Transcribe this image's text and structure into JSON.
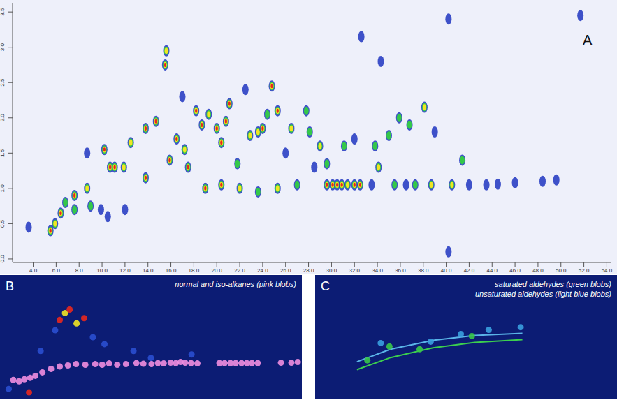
{
  "chart_data": [
    {
      "panel_label": "A",
      "type": "scatter",
      "xlim": [
        2.2,
        54.4
      ],
      "ylim": [
        -0.05,
        3.63
      ],
      "xticks": [
        {
          "value": 4,
          "label": "4.0"
        },
        {
          "value": 6,
          "label": "6.0"
        },
        {
          "value": 8,
          "label": "8.0"
        },
        {
          "value": 10,
          "label": "10.0"
        },
        {
          "value": 12,
          "label": "12.0"
        },
        {
          "value": 14,
          "label": "14.0"
        },
        {
          "value": 16,
          "label": "16.0"
        },
        {
          "value": 18,
          "label": "18.0"
        },
        {
          "value": 20,
          "label": "20.0"
        },
        {
          "value": 22,
          "label": "22.0"
        },
        {
          "value": 24,
          "label": "24.0"
        },
        {
          "value": 26,
          "label": "26.0"
        },
        {
          "value": 28,
          "label": "28.0"
        },
        {
          "value": 30,
          "label": "30.0"
        },
        {
          "value": 32,
          "label": "32.0"
        },
        {
          "value": 34,
          "label": "34.0"
        },
        {
          "value": 36,
          "label": "36.0"
        },
        {
          "value": 38,
          "label": "38.0"
        },
        {
          "value": 40,
          "label": "40.0"
        },
        {
          "value": 42,
          "label": "42.0"
        },
        {
          "value": 44,
          "label": "44.0"
        },
        {
          "value": 46,
          "label": "46.0"
        },
        {
          "value": 48,
          "label": "48.0"
        },
        {
          "value": 50,
          "label": "50.0"
        },
        {
          "value": 52,
          "label": "52.0"
        },
        {
          "value": 54,
          "label": "54.0"
        }
      ],
      "yticks": [
        {
          "value": 0,
          "label": "0.0"
        },
        0.5,
        {
          "value": 1,
          "label": "1.0"
        },
        1.5,
        {
          "value": 2,
          "label": "2.0"
        },
        2.5,
        {
          "value": 3,
          "label": "3.0"
        },
        3.5
      ],
      "x": [
        3.6,
        5.5,
        5.9,
        6.4,
        6.8,
        7.6,
        7.6,
        8.7,
        9.0,
        9.9,
        10.5,
        8.7,
        10.2,
        10.7,
        11.1,
        11.9,
        12.5,
        12.0,
        13.8,
        13.8,
        14.7,
        15.5,
        15.6,
        15.9,
        16.5,
        17.2,
        17.5,
        18.2,
        18.7,
        19.0,
        19.3,
        20.0,
        20.4,
        20.8,
        21.1,
        20.4,
        22.0,
        22.9,
        23.6,
        24.0,
        24.4,
        25.3,
        25.3,
        23.6,
        26.5,
        27.8,
        28.1,
        29.0,
        29.6,
        30.1,
        30.5,
        30.9,
        31.4,
        32.0,
        32.5,
        29.6,
        31.1,
        32.0,
        33.8,
        34.1,
        35.0,
        35.9,
        36.8,
        38.1,
        38.7,
        40.5,
        39.0,
        41.4,
        43.5,
        46.0,
        48.4,
        49.6,
        34.3,
        32.6,
        40.2,
        40.2,
        51.7,
        33.5,
        35.5,
        36.5,
        37.3,
        42.0,
        44.5,
        27.0,
        26.0,
        28.5,
        17.0,
        22.5,
        24.8,
        21.8
      ],
      "values": [
        0.45,
        0.4,
        0.5,
        0.65,
        0.8,
        0.9,
        0.7,
        1.0,
        0.75,
        0.7,
        0.6,
        1.5,
        1.55,
        1.3,
        1.3,
        1.3,
        1.65,
        0.7,
        1.15,
        1.85,
        1.95,
        2.75,
        2.95,
        1.4,
        1.7,
        1.55,
        1.3,
        2.1,
        1.9,
        1.0,
        2.05,
        1.85,
        1.65,
        1.95,
        2.2,
        1.05,
        1.0,
        1.75,
        1.8,
        1.85,
        2.05,
        2.1,
        1.0,
        0.95,
        1.85,
        2.1,
        1.8,
        1.6,
        1.05,
        1.05,
        1.05,
        1.05,
        1.05,
        1.05,
        1.05,
        1.35,
        1.6,
        1.7,
        1.6,
        1.3,
        1.75,
        2.0,
        1.9,
        2.15,
        1.05,
        1.05,
        1.8,
        1.4,
        1.05,
        1.08,
        1.1,
        1.12,
        2.8,
        3.15,
        3.4,
        0.1,
        3.45,
        1.05,
        1.05,
        1.05,
        1.05,
        1.05,
        1.06,
        1.05,
        1.5,
        1.3,
        2.3,
        2.4,
        2.45,
        1.35
      ],
      "colors": [
        "#1f35c0",
        "#e8281e",
        "#f2e424",
        "#e8281e",
        "#35c84a",
        "#e8281e",
        "#35c84a",
        "#f2e424",
        "#35c84a",
        "#1f35c0",
        "#1f35c0",
        "#1f35c0",
        "#e8281e",
        "#e8281e",
        "#e8281e",
        "#f2e424",
        "#f2e424",
        "#1f35c0",
        "#e8281e",
        "#e8281e",
        "#e8281e",
        "#e8281e",
        "#f2e424",
        "#e8281e",
        "#e8281e",
        "#f2e424",
        "#e8281e",
        "#e8281e",
        "#e8281e",
        "#e8281e",
        "#f2e424",
        "#e8281e",
        "#e8281e",
        "#e8281e",
        "#e8281e",
        "#e8281e",
        "#f2e424",
        "#f2e424",
        "#f2e424",
        "#e8281e",
        "#35c84a",
        "#e8281e",
        "#f2e424",
        "#35c84a",
        "#f2e424",
        "#35c84a",
        "#35c84a",
        "#f2e424",
        "#e8281e",
        "#e8281e",
        "#e8281e",
        "#e8281e",
        "#f2e424",
        "#e8281e",
        "#e8281e",
        "#35c84a",
        "#35c84a",
        "#1f35c0",
        "#35c84a",
        "#f2e424",
        "#35c84a",
        "#35c84a",
        "#35c84a",
        "#f2e424",
        "#f2e424",
        "#f2e424",
        "#1f35c0",
        "#35c84a",
        "#1f35c0",
        "#1f35c0",
        "#1f35c0",
        "#1f35c0",
        "#1f35c0",
        "#1f35c0",
        "#1f35c0",
        "#1f35c0",
        "#1f35c0",
        "#1f35c0",
        "#35c84a",
        "#1f35c0",
        "#35c84a",
        "#1f35c0",
        "#1f35c0",
        "#35c84a",
        "#1f35c0",
        "#1f35c0",
        "#1f35c0",
        "#1f35c0",
        "#e8281e",
        "#35c84a"
      ]
    },
    {
      "panel_label": "B",
      "type": "scatter",
      "tick_labels": false,
      "annotations": [
        "normal and iso-alkanes (pink blobs)"
      ],
      "xlim": [
        2,
        54
      ],
      "ylim": [
        0,
        3.6
      ],
      "series": [
        {
          "type": "scatter",
          "marker": "circle",
          "x": [
            12.3,
            13.2,
            14.0,
            15.2,
            16.5,
            11.5,
            18.0,
            20.0,
            25.0,
            28.0,
            35.0,
            9.0,
            7.0,
            3.5
          ],
          "values": [
            2.3,
            2.5,
            2.6,
            2.2,
            2.35,
            2.0,
            1.8,
            1.6,
            1.4,
            1.2,
            1.3,
            1.4,
            0.2,
            0.3
          ],
          "colors": [
            "#e8281e",
            "#f2e424",
            "#e8281e",
            "#f2e424",
            "#e8281e",
            "#2a4fd0",
            "#2a4fd0",
            "#2a4fd0",
            "#2a4fd0",
            "#2a4fd0",
            "#2a4fd0",
            "#2a4fd0",
            "#e8281e",
            "#2a4fd0"
          ]
        },
        {
          "type": "scatter",
          "marker": "circle",
          "color": "#f08ee0",
          "x": [
            4.3,
            5.3,
            6.2,
            7.2,
            8.1,
            9.3,
            10.8,
            12.3,
            13.7,
            15.1,
            16.7,
            18.4,
            19.6,
            20.8,
            22.2,
            23.7,
            25.5,
            26.7,
            28.1,
            29.2,
            30.2,
            31.4,
            32.3,
            33.1,
            33.9,
            34.9,
            36.0,
            39.8,
            40.7,
            41.7,
            42.6,
            43.6,
            44.5,
            45.4,
            46.4,
            50.4,
            52.2,
            53.3
          ],
          "values": [
            0.56,
            0.52,
            0.58,
            0.62,
            0.68,
            0.78,
            0.88,
            0.95,
            0.98,
            1.02,
            1.0,
            1.02,
            1.0,
            1.04,
            1.0,
            1.02,
            1.05,
            1.03,
            1.02,
            1.05,
            1.04,
            1.06,
            1.05,
            1.08,
            1.06,
            1.05,
            1.04,
            1.05,
            1.05,
            1.05,
            1.05,
            1.05,
            1.05,
            1.05,
            1.05,
            1.06,
            1.06,
            1.08
          ]
        }
      ]
    },
    {
      "panel_label": "C",
      "type": "scatter",
      "tick_labels": false,
      "annotations": [
        "saturated aldehydes (green blobs)",
        "unsaturated aldehydes (light blue blobs)"
      ],
      "xlim": [
        2,
        54
      ],
      "ylim": [
        0,
        3.6
      ],
      "series": [
        {
          "type": "line",
          "color": "#5ab4e8",
          "x": [
            9.2,
            15.0,
            22.3,
            29.5,
            37.7
          ],
          "values": [
            1.09,
            1.45,
            1.71,
            1.85,
            1.91
          ]
        },
        {
          "type": "line",
          "color": "#3ccf4e",
          "x": [
            9.2,
            15.0,
            22.3,
            29.5,
            37.7
          ],
          "values": [
            0.86,
            1.21,
            1.49,
            1.65,
            1.73
          ]
        },
        {
          "type": "scatter",
          "marker": "circle",
          "color": "#38c84a",
          "x": [
            11.0,
            14.8,
            20.0,
            29.0
          ],
          "values": [
            1.13,
            1.53,
            1.45,
            1.83
          ]
        },
        {
          "type": "scatter",
          "marker": "circle",
          "color": "#3aa0e0",
          "x": [
            13.3,
            21.9,
            27.1,
            31.9,
            37.4
          ],
          "values": [
            1.63,
            1.67,
            1.89,
            2.01,
            2.09
          ]
        }
      ]
    }
  ]
}
